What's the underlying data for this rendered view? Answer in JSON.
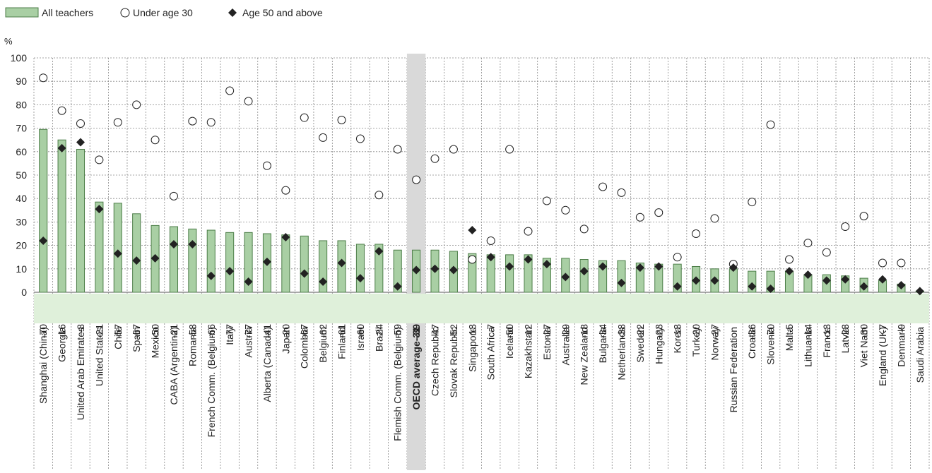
{
  "chart_data": {
    "type": "bar",
    "ylabel": "%",
    "ylim": [
      0,
      100
    ],
    "yticks": [
      0,
      10,
      20,
      30,
      40,
      50,
      60,
      70,
      80,
      90,
      100
    ],
    "grid": true,
    "legend_placement": "top-left",
    "highlight_category": "OECD average-31",
    "categories": [
      "Shanghai (China)",
      "Georgia",
      "United Arab Emirates",
      "United States",
      "Chile",
      "Spain",
      "Mexico",
      "CABA (Argentina)",
      "Romania",
      "French Comm. (Belgium)",
      "Italy",
      "Austria",
      "Alberta (Canada)",
      "Japan",
      "Colombia",
      "Belgium",
      "Finland",
      "Israel",
      "Brazil",
      "Flemish Comm. (Belgium)",
      "OECD average-31",
      "Czech Republic",
      "Slovak Republic",
      "Singapore",
      "South Africa",
      "Iceland",
      "Kazakhstan",
      "Estonia",
      "Australia",
      "New Zealand",
      "Bulgaria",
      "Netherlands",
      "Sweden",
      "Hungary",
      "Korea",
      "Turkey",
      "Norway",
      "Russian Federation",
      "Croatia",
      "Slovenia",
      "Malta",
      "Lithuania",
      "France",
      "Latvia",
      "Viet Nam",
      "England (UK)",
      "Denmark",
      "Saudi Arabia"
    ],
    "differences": [
      "-70",
      "-16",
      "-8",
      "-21",
      "-57",
      "-67",
      "-50",
      "-21",
      "-53",
      "-66",
      "-77",
      "-77",
      "-41",
      "-20",
      "-67",
      "-62",
      "-61",
      "-60",
      "-24",
      "-59",
      "-39",
      "-47",
      "-52",
      "13",
      "-7",
      "-50",
      "-12",
      "-27",
      "-29",
      "-18",
      "-34",
      "-38",
      "-22",
      "-23",
      "-13",
      "-20",
      "-27",
      "",
      "-36",
      "-70",
      "-5",
      "-14",
      "-13",
      "-23",
      "-30",
      "-7",
      "-9",
      ""
    ],
    "series": [
      {
        "name": "All teachers",
        "marker": "bar",
        "color": "#a9cfa4",
        "values": [
          69.5,
          65,
          61,
          38.5,
          38,
          33.5,
          28.5,
          28,
          27,
          26.5,
          25.5,
          25.5,
          25,
          24.5,
          24,
          22,
          22,
          20.5,
          20.5,
          18,
          18,
          18,
          17.5,
          16.5,
          16,
          16,
          16,
          14.5,
          14.5,
          14,
          13.5,
          13.5,
          12.5,
          12,
          12,
          11,
          10,
          10,
          9,
          9,
          9,
          7.5,
          7.5,
          7,
          6,
          5,
          3.5,
          0.5
        ]
      },
      {
        "name": "Under age 30",
        "marker": "circle",
        "values": [
          91.5,
          77.5,
          72,
          56.5,
          72.5,
          80,
          65,
          41,
          73,
          72.5,
          86,
          81.5,
          54,
          43.5,
          74.5,
          66,
          73.5,
          65.5,
          41.5,
          61,
          48,
          57,
          61,
          14,
          22,
          61,
          26,
          39,
          35,
          27,
          45,
          42.5,
          32,
          34,
          15,
          25,
          31.5,
          12,
          38.5,
          71.5,
          14,
          21,
          17,
          28,
          32.5,
          12.5,
          12.5,
          null
        ]
      },
      {
        "name": "Age 50 and above",
        "marker": "diamond",
        "values": [
          22,
          61.5,
          64,
          35.5,
          16.5,
          13.5,
          14.5,
          20.5,
          20.5,
          7,
          9,
          4.5,
          13,
          23.5,
          8,
          4.5,
          12.5,
          6,
          17.5,
          2.5,
          9.5,
          10,
          9.5,
          26.5,
          15,
          11,
          14,
          12,
          6.5,
          9,
          11,
          4,
          10.5,
          11,
          2.5,
          5,
          5,
          10.5,
          2.5,
          1.5,
          9,
          7.5,
          5,
          5.5,
          2.5,
          5.5,
          3,
          0.5
        ]
      }
    ]
  }
}
